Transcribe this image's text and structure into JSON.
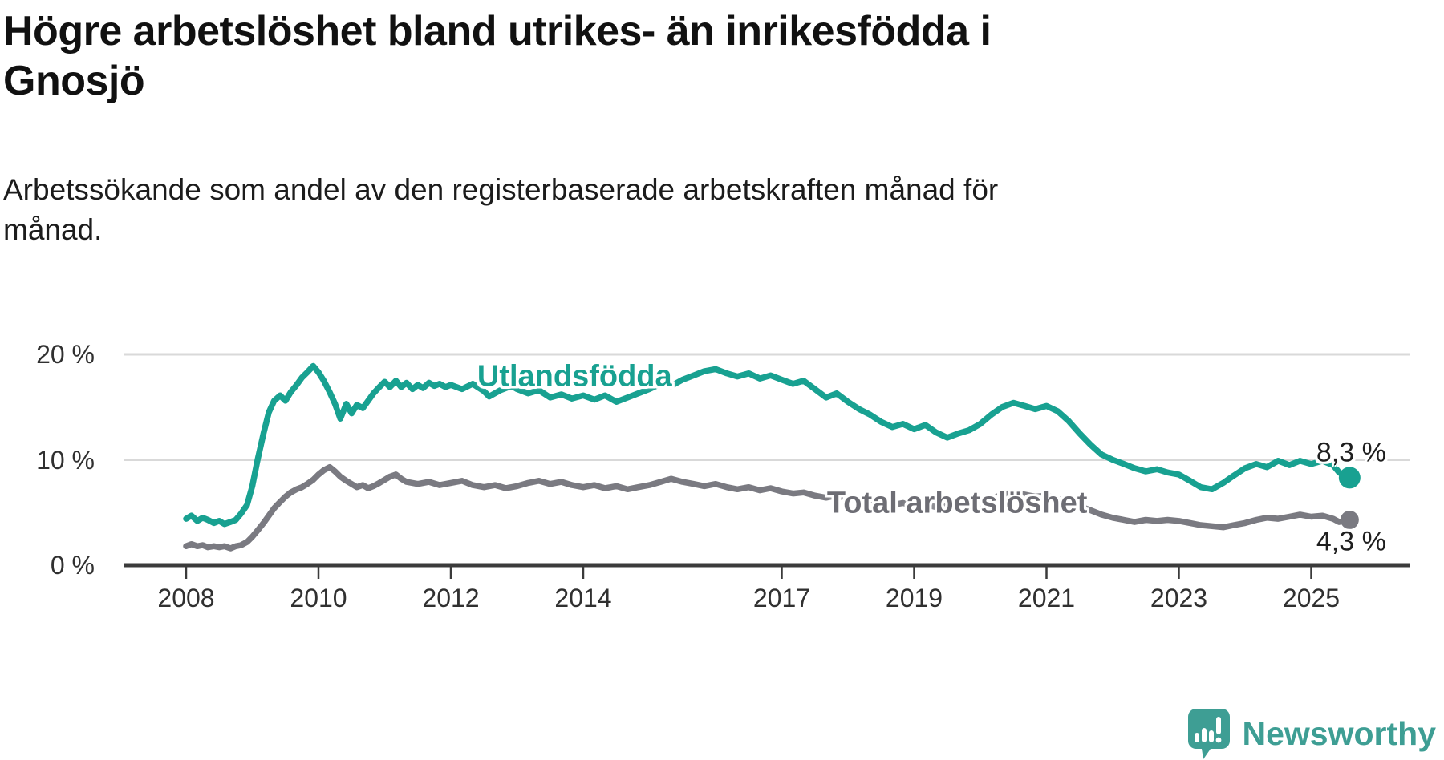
{
  "header": {
    "title": "Högre arbetslöshet bland utrikes- än inrikesfödda i Gnosjö",
    "title_lines": [
      "Högre arbetslöshet bland utrikes- än inrikesfödda i",
      "Gnosjö"
    ],
    "subtitle": "Arbetssökande som andel av den registerbaserade arbetskraften månad för månad.",
    "subtitle_lines": [
      "Arbetssökande som andel av den registerbaserade arbetskraften månad för",
      "månad."
    ]
  },
  "footer": {
    "brand": "Newsworthy"
  },
  "colors": {
    "accent_teal": "#18a191",
    "series_gray": "#7a7a81",
    "gray_label": "#6d6d74",
    "axis": "#3b3b3b",
    "grid": "#d9d9d9",
    "text": "#1a1a1a",
    "logo_teal": "#3e9e94"
  },
  "chart_data": {
    "type": "line",
    "title": "Högre arbetslöshet bland utrikes- än inrikesfödda i Gnosjö",
    "subtitle": "Arbetssökande som andel av den registerbaserade arbetskraften månad för månad.",
    "unit": "%",
    "grid": "horizontal-only",
    "legend_position": "inline-labels",
    "x_axis": {
      "ticks": [
        2008,
        2010,
        2012,
        2014,
        2017,
        2019,
        2021,
        2023,
        2025
      ],
      "range": [
        2007.5,
        2026.3
      ]
    },
    "y_axis": {
      "ticks": [
        0,
        10,
        20
      ],
      "tick_labels": [
        "0 %",
        "10 %",
        "20 %"
      ],
      "range": [
        0,
        22
      ]
    },
    "series_labels": [
      {
        "text": "Utlandsfödda",
        "x": 2013.87,
        "y": 17.9
      },
      {
        "text": "Total arbetslöshet",
        "x": 2019.65,
        "y": 5.85
      }
    ],
    "series": [
      {
        "name": "Utlandsfödda",
        "color": "#18a191",
        "end_label": "8,3 %",
        "end_value": 8.3,
        "points": [
          [
            2008.0,
            4.4
          ],
          [
            2008.08,
            4.7
          ],
          [
            2008.17,
            4.2
          ],
          [
            2008.25,
            4.5
          ],
          [
            2008.33,
            4.3
          ],
          [
            2008.42,
            4.0
          ],
          [
            2008.5,
            4.2
          ],
          [
            2008.58,
            3.9
          ],
          [
            2008.67,
            4.1
          ],
          [
            2008.75,
            4.3
          ],
          [
            2008.83,
            4.9
          ],
          [
            2008.92,
            5.7
          ],
          [
            2009.0,
            7.5
          ],
          [
            2009.08,
            10.0
          ],
          [
            2009.17,
            12.5
          ],
          [
            2009.25,
            14.5
          ],
          [
            2009.33,
            15.6
          ],
          [
            2009.42,
            16.1
          ],
          [
            2009.5,
            15.6
          ],
          [
            2009.58,
            16.4
          ],
          [
            2009.67,
            17.1
          ],
          [
            2009.75,
            17.8
          ],
          [
            2009.83,
            18.3
          ],
          [
            2009.92,
            18.9
          ],
          [
            2010.0,
            18.3
          ],
          [
            2010.08,
            17.5
          ],
          [
            2010.17,
            16.4
          ],
          [
            2010.25,
            15.3
          ],
          [
            2010.33,
            13.9
          ],
          [
            2010.42,
            15.3
          ],
          [
            2010.5,
            14.4
          ],
          [
            2010.58,
            15.2
          ],
          [
            2010.67,
            14.9
          ],
          [
            2010.75,
            15.6
          ],
          [
            2010.83,
            16.3
          ],
          [
            2010.92,
            16.9
          ],
          [
            2011.0,
            17.4
          ],
          [
            2011.08,
            16.9
          ],
          [
            2011.17,
            17.5
          ],
          [
            2011.25,
            16.9
          ],
          [
            2011.33,
            17.3
          ],
          [
            2011.42,
            16.7
          ],
          [
            2011.5,
            17.1
          ],
          [
            2011.58,
            16.8
          ],
          [
            2011.67,
            17.3
          ],
          [
            2011.75,
            17.0
          ],
          [
            2011.83,
            17.2
          ],
          [
            2011.92,
            16.9
          ],
          [
            2012.0,
            17.1
          ],
          [
            2012.17,
            16.7
          ],
          [
            2012.33,
            17.2
          ],
          [
            2012.5,
            16.5
          ],
          [
            2012.58,
            16.0
          ],
          [
            2012.75,
            16.6
          ],
          [
            2012.92,
            17.0
          ],
          [
            2013.0,
            16.7
          ],
          [
            2013.17,
            16.3
          ],
          [
            2013.33,
            16.6
          ],
          [
            2013.5,
            15.9
          ],
          [
            2013.67,
            16.2
          ],
          [
            2013.83,
            15.8
          ],
          [
            2014.0,
            16.1
          ],
          [
            2014.17,
            15.7
          ],
          [
            2014.33,
            16.1
          ],
          [
            2014.5,
            15.5
          ],
          [
            2014.67,
            15.9
          ],
          [
            2014.83,
            16.3
          ],
          [
            2015.0,
            16.7
          ],
          [
            2015.17,
            17.2
          ],
          [
            2015.33,
            17.0
          ],
          [
            2015.5,
            17.6
          ],
          [
            2015.67,
            18.0
          ],
          [
            2015.83,
            18.4
          ],
          [
            2016.0,
            18.6
          ],
          [
            2016.17,
            18.2
          ],
          [
            2016.33,
            17.9
          ],
          [
            2016.5,
            18.2
          ],
          [
            2016.67,
            17.7
          ],
          [
            2016.83,
            18.0
          ],
          [
            2017.0,
            17.6
          ],
          [
            2017.17,
            17.2
          ],
          [
            2017.33,
            17.5
          ],
          [
            2017.5,
            16.7
          ],
          [
            2017.67,
            15.9
          ],
          [
            2017.83,
            16.3
          ],
          [
            2018.0,
            15.5
          ],
          [
            2018.17,
            14.8
          ],
          [
            2018.33,
            14.3
          ],
          [
            2018.5,
            13.6
          ],
          [
            2018.67,
            13.1
          ],
          [
            2018.83,
            13.4
          ],
          [
            2019.0,
            12.9
          ],
          [
            2019.17,
            13.3
          ],
          [
            2019.33,
            12.6
          ],
          [
            2019.5,
            12.1
          ],
          [
            2019.67,
            12.5
          ],
          [
            2019.83,
            12.8
          ],
          [
            2020.0,
            13.4
          ],
          [
            2020.17,
            14.3
          ],
          [
            2020.33,
            15.0
          ],
          [
            2020.5,
            15.4
          ],
          [
            2020.67,
            15.1
          ],
          [
            2020.83,
            14.8
          ],
          [
            2021.0,
            15.1
          ],
          [
            2021.17,
            14.6
          ],
          [
            2021.33,
            13.7
          ],
          [
            2021.5,
            12.5
          ],
          [
            2021.67,
            11.4
          ],
          [
            2021.83,
            10.5
          ],
          [
            2022.0,
            10.0
          ],
          [
            2022.17,
            9.6
          ],
          [
            2022.33,
            9.2
          ],
          [
            2022.5,
            8.9
          ],
          [
            2022.67,
            9.1
          ],
          [
            2022.83,
            8.8
          ],
          [
            2023.0,
            8.6
          ],
          [
            2023.17,
            8.0
          ],
          [
            2023.33,
            7.4
          ],
          [
            2023.5,
            7.2
          ],
          [
            2023.67,
            7.8
          ],
          [
            2023.83,
            8.5
          ],
          [
            2024.0,
            9.2
          ],
          [
            2024.17,
            9.6
          ],
          [
            2024.33,
            9.3
          ],
          [
            2024.5,
            9.9
          ],
          [
            2024.67,
            9.5
          ],
          [
            2024.83,
            9.9
          ],
          [
            2025.0,
            9.6
          ],
          [
            2025.17,
            9.9
          ],
          [
            2025.33,
            9.5
          ],
          [
            2025.42,
            8.8
          ],
          [
            2025.5,
            8.5
          ],
          [
            2025.58,
            8.3
          ]
        ]
      },
      {
        "name": "Total arbetslöshet",
        "color": "#7a7a81",
        "end_label": "4,3 %",
        "end_value": 4.3,
        "points": [
          [
            2008.0,
            1.8
          ],
          [
            2008.08,
            2.0
          ],
          [
            2008.17,
            1.8
          ],
          [
            2008.25,
            1.9
          ],
          [
            2008.33,
            1.7
          ],
          [
            2008.42,
            1.8
          ],
          [
            2008.5,
            1.7
          ],
          [
            2008.58,
            1.8
          ],
          [
            2008.67,
            1.6
          ],
          [
            2008.75,
            1.8
          ],
          [
            2008.83,
            1.9
          ],
          [
            2008.92,
            2.2
          ],
          [
            2009.0,
            2.7
          ],
          [
            2009.08,
            3.3
          ],
          [
            2009.17,
            4.0
          ],
          [
            2009.25,
            4.7
          ],
          [
            2009.33,
            5.4
          ],
          [
            2009.42,
            6.0
          ],
          [
            2009.5,
            6.5
          ],
          [
            2009.58,
            6.9
          ],
          [
            2009.67,
            7.2
          ],
          [
            2009.75,
            7.4
          ],
          [
            2009.83,
            7.7
          ],
          [
            2009.92,
            8.1
          ],
          [
            2010.0,
            8.6
          ],
          [
            2010.08,
            9.0
          ],
          [
            2010.17,
            9.3
          ],
          [
            2010.25,
            8.9
          ],
          [
            2010.33,
            8.4
          ],
          [
            2010.42,
            8.0
          ],
          [
            2010.5,
            7.7
          ],
          [
            2010.58,
            7.4
          ],
          [
            2010.67,
            7.6
          ],
          [
            2010.75,
            7.3
          ],
          [
            2010.83,
            7.5
          ],
          [
            2010.92,
            7.8
          ],
          [
            2011.0,
            8.1
          ],
          [
            2011.08,
            8.4
          ],
          [
            2011.17,
            8.6
          ],
          [
            2011.25,
            8.2
          ],
          [
            2011.33,
            7.9
          ],
          [
            2011.5,
            7.7
          ],
          [
            2011.67,
            7.9
          ],
          [
            2011.83,
            7.6
          ],
          [
            2012.0,
            7.8
          ],
          [
            2012.17,
            8.0
          ],
          [
            2012.33,
            7.6
          ],
          [
            2012.5,
            7.4
          ],
          [
            2012.67,
            7.6
          ],
          [
            2012.83,
            7.3
          ],
          [
            2013.0,
            7.5
          ],
          [
            2013.17,
            7.8
          ],
          [
            2013.33,
            8.0
          ],
          [
            2013.5,
            7.7
          ],
          [
            2013.67,
            7.9
          ],
          [
            2013.83,
            7.6
          ],
          [
            2014.0,
            7.4
          ],
          [
            2014.17,
            7.6
          ],
          [
            2014.33,
            7.3
          ],
          [
            2014.5,
            7.5
          ],
          [
            2014.67,
            7.2
          ],
          [
            2014.83,
            7.4
          ],
          [
            2015.0,
            7.6
          ],
          [
            2015.17,
            7.9
          ],
          [
            2015.33,
            8.2
          ],
          [
            2015.5,
            7.9
          ],
          [
            2015.67,
            7.7
          ],
          [
            2015.83,
            7.5
          ],
          [
            2016.0,
            7.7
          ],
          [
            2016.17,
            7.4
          ],
          [
            2016.33,
            7.2
          ],
          [
            2016.5,
            7.4
          ],
          [
            2016.67,
            7.1
          ],
          [
            2016.83,
            7.3
          ],
          [
            2017.0,
            7.0
          ],
          [
            2017.17,
            6.8
          ],
          [
            2017.33,
            6.9
          ],
          [
            2017.5,
            6.6
          ],
          [
            2017.67,
            6.4
          ],
          [
            2017.83,
            6.6
          ],
          [
            2018.0,
            6.3
          ],
          [
            2018.17,
            6.1
          ],
          [
            2018.33,
            6.2
          ],
          [
            2018.5,
            5.9
          ],
          [
            2018.67,
            5.7
          ],
          [
            2018.83,
            5.9
          ],
          [
            2019.0,
            5.6
          ],
          [
            2019.17,
            5.8
          ],
          [
            2019.33,
            5.5
          ],
          [
            2019.5,
            5.7
          ],
          [
            2019.67,
            5.4
          ],
          [
            2019.83,
            5.6
          ],
          [
            2020.0,
            5.8
          ],
          [
            2020.17,
            6.3
          ],
          [
            2020.33,
            6.7
          ],
          [
            2020.5,
            6.9
          ],
          [
            2020.67,
            6.7
          ],
          [
            2020.83,
            6.5
          ],
          [
            2021.0,
            6.6
          ],
          [
            2021.17,
            6.3
          ],
          [
            2021.33,
            6.0
          ],
          [
            2021.5,
            5.6
          ],
          [
            2021.67,
            5.2
          ],
          [
            2021.83,
            4.8
          ],
          [
            2022.0,
            4.5
          ],
          [
            2022.17,
            4.3
          ],
          [
            2022.33,
            4.1
          ],
          [
            2022.5,
            4.3
          ],
          [
            2022.67,
            4.2
          ],
          [
            2022.83,
            4.3
          ],
          [
            2023.0,
            4.2
          ],
          [
            2023.17,
            4.0
          ],
          [
            2023.33,
            3.8
          ],
          [
            2023.5,
            3.7
          ],
          [
            2023.67,
            3.6
          ],
          [
            2023.83,
            3.8
          ],
          [
            2024.0,
            4.0
          ],
          [
            2024.17,
            4.3
          ],
          [
            2024.33,
            4.5
          ],
          [
            2024.5,
            4.4
          ],
          [
            2024.67,
            4.6
          ],
          [
            2024.83,
            4.8
          ],
          [
            2025.0,
            4.6
          ],
          [
            2025.17,
            4.7
          ],
          [
            2025.33,
            4.4
          ],
          [
            2025.42,
            4.1
          ],
          [
            2025.5,
            4.2
          ],
          [
            2025.58,
            4.3
          ]
        ]
      }
    ]
  }
}
